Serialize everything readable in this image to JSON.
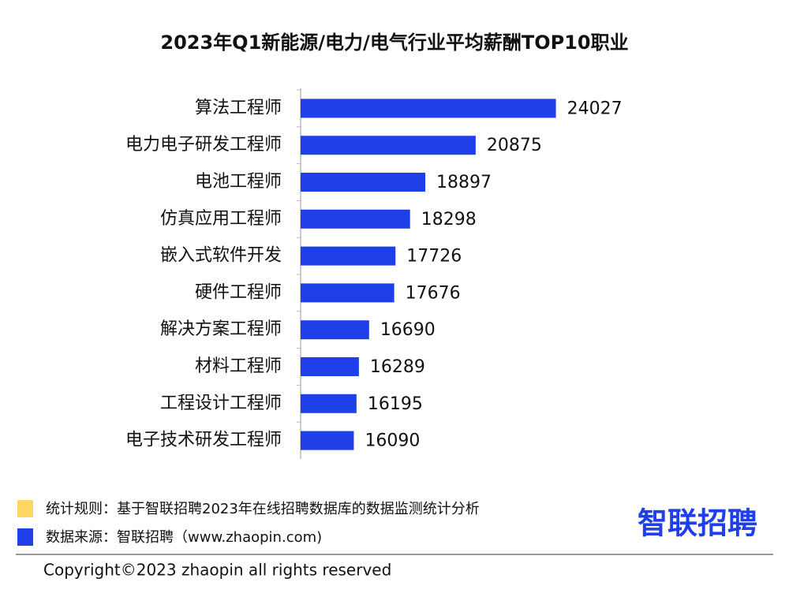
{
  "chart_data": {
    "type": "hbar",
    "title": "2023年Q1新能源/电力/电气行业平均薪酬TOP10职业",
    "categories": [
      "算法工程师",
      "电力电子研发工程师",
      "电池工程师",
      "仿真应用工程师",
      "嵌入式软件开发",
      "硬件工程师",
      "解决方案工程师",
      "材料工程师",
      "工程设计工程师",
      "电子技术研发工程师"
    ],
    "values": [
      24027,
      20875,
      18897,
      18298,
      17726,
      17676,
      16690,
      16289,
      16195,
      16090
    ],
    "color": "#1f3fe8",
    "xlim": [
      14000,
      25000
    ],
    "notes": [
      {
        "text": "统计规则：基于智联招聘2023年在线招聘数据库的数据监测统计分析",
        "color": "#fdd663"
      },
      {
        "text": "数据来源：智联招聘（www.zhaopin.com)",
        "color": "#1f3fe8"
      }
    ],
    "logo": "智联招聘",
    "copyright": "Copyright©2023 zhaopin all rights reserved"
  }
}
